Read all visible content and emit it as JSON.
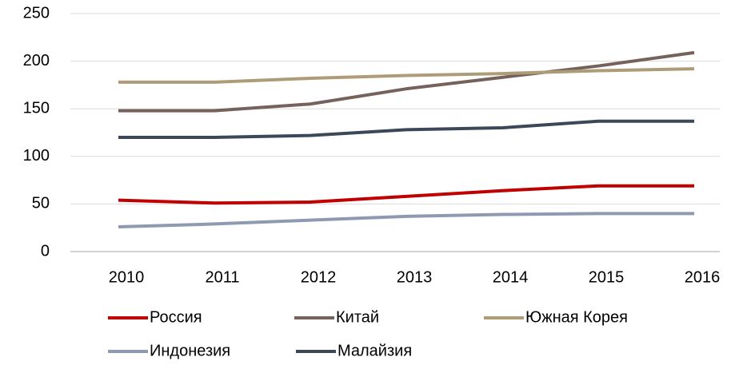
{
  "chart_data": {
    "type": "line",
    "categories": [
      "2010",
      "2011",
      "2012",
      "2013",
      "2014",
      "2015",
      "2016"
    ],
    "series": [
      {
        "name": "Россия",
        "color": "#c00000",
        "values": [
          54,
          51,
          52,
          58,
          64,
          69,
          69
        ]
      },
      {
        "name": "Китай",
        "color": "#76625c",
        "values": [
          148,
          148,
          155,
          171,
          183,
          195,
          209
        ]
      },
      {
        "name": "Южная Корея",
        "color": "#ae9c78",
        "values": [
          178,
          178,
          182,
          185,
          187,
          190,
          192
        ]
      },
      {
        "name": "Индонезия",
        "color": "#8d9ab2",
        "values": [
          26,
          29,
          33,
          37,
          39,
          40,
          40
        ]
      },
      {
        "name": "Малайзия",
        "color": "#3b4858",
        "values": [
          120,
          120,
          122,
          128,
          130,
          137,
          137
        ]
      }
    ],
    "ylim": [
      0,
      250
    ],
    "yticks": [
      0,
      50,
      100,
      150,
      200,
      250
    ],
    "grid": true
  }
}
